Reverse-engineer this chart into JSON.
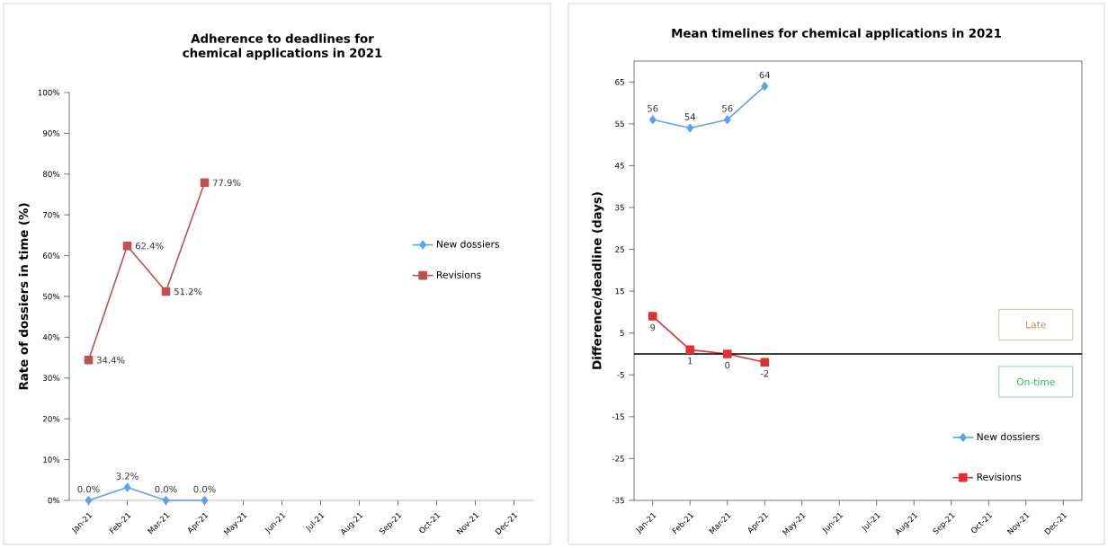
{
  "chart_data": [
    {
      "type": "line",
      "title": "Adherence to deadlines for chemical applications in 2021",
      "ylabel": "Rate of dossiers in time (%)",
      "categories": [
        "Jan-21",
        "Feb-21",
        "Mar-21",
        "Apr-21",
        "May-21",
        "Jun-21",
        "Jul-21",
        "Aug-21",
        "Sep-21",
        "Oct-21",
        "Nov-21",
        "Dec-21"
      ],
      "series": [
        {
          "name": "New dossiers",
          "color": "#5aa2f0",
          "marker": "diamond",
          "values": [
            0,
            3.2,
            0,
            0,
            null,
            null,
            null,
            null,
            null,
            null,
            null,
            null
          ],
          "value_labels": [
            "0.0%",
            "3.2%",
            "0.0%",
            "0.0%",
            null,
            null,
            null,
            null,
            null,
            null,
            null,
            null
          ]
        },
        {
          "name": "Revisions",
          "color": "#c0504d",
          "marker": "square",
          "values": [
            34.4,
            62.4,
            51.2,
            77.9,
            null,
            null,
            null,
            null,
            null,
            null,
            null,
            null
          ],
          "value_labels": [
            "34.4%",
            "62.4%",
            "51.2%",
            "77.9%",
            null,
            null,
            null,
            null,
            null,
            null,
            null,
            null
          ]
        }
      ],
      "ylim": [
        0,
        100
      ],
      "yticks": [
        {
          "value": 0,
          "label": "0%"
        },
        {
          "value": 10,
          "label": "10%"
        },
        {
          "value": 20,
          "label": "20%"
        },
        {
          "value": 30,
          "label": "30%"
        },
        {
          "value": 40,
          "label": "40%"
        },
        {
          "value": 50,
          "label": "50%"
        },
        {
          "value": 60,
          "label": "60%"
        },
        {
          "value": 70,
          "label": "70%"
        },
        {
          "value": 80,
          "label": "80%"
        },
        {
          "value": 90,
          "label": "90%"
        },
        {
          "value": 100,
          "label": "100%"
        }
      ],
      "legend": "right"
    },
    {
      "type": "line",
      "title": "Mean timelines for chemical applications in 2021",
      "ylabel": "Difference/deadline (days)",
      "categories": [
        "Jan-21",
        "Feb-21",
        "Mar-21",
        "Apr-21",
        "May-21",
        "Jun-21",
        "Jul-21",
        "Aug-21",
        "Sep-21",
        "Oct-21",
        "Nov-21",
        "Dec-21"
      ],
      "series": [
        {
          "name": "New dossiers",
          "color": "#5aa2f0",
          "marker": "diamond",
          "values": [
            56,
            54,
            56,
            64,
            null,
            null,
            null,
            null,
            null,
            null,
            null,
            null
          ]
        },
        {
          "name": "Revisions",
          "color": "#e03030",
          "marker": "square",
          "values": [
            9,
            1,
            0,
            -2,
            null,
            null,
            null,
            null,
            null,
            null,
            null,
            null
          ]
        }
      ],
      "ylim": [
        -35,
        70
      ],
      "yticks": [
        -35,
        -25,
        -15,
        -5,
        5,
        15,
        25,
        35,
        45,
        55,
        65
      ],
      "data_labels": true,
      "ref_lines": [
        {
          "axis": "y",
          "value": 0,
          "color": "#000000"
        }
      ],
      "annotations": [
        "Late",
        "On-time"
      ],
      "legend": "bottom right"
    }
  ]
}
